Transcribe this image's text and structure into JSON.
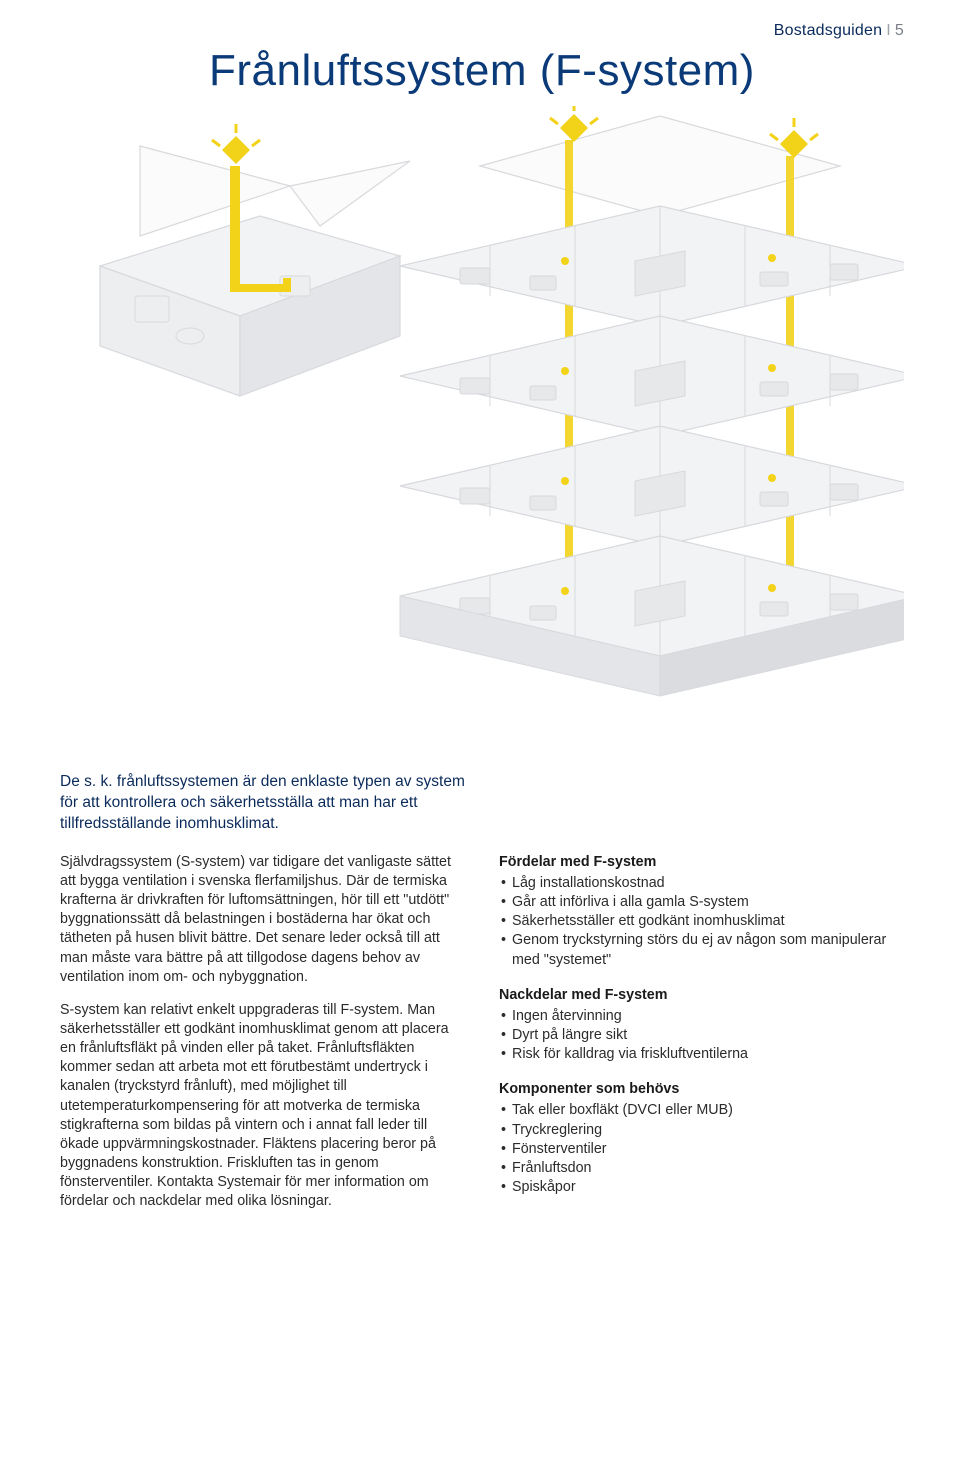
{
  "header": {
    "label": "Bostadsguiden",
    "page": "5"
  },
  "title": "Frånluftssystem (F-system)",
  "illustration": {
    "colors": {
      "duct": "#f3d21a",
      "wall_fill": "#f2f3f5",
      "wall_stroke": "#d7d9dc",
      "shadow": "#babdc2",
      "roof_fill": "#fbfbfc"
    }
  },
  "intro": "De s. k. frånluftssystemen är den enklaste typen av system för att kontrollera och säkerhetsställa att man har ett tillfredsställande inomhusklimat.",
  "left_paragraphs": [
    "Självdragssystem (S-system) var tidigare det vanligaste sättet att bygga ventilation i svenska flerfamiljshus. Där de termiska krafterna är drivkraften för luftomsättningen, hör till ett \"utdött\" byggnationssätt då belastningen i bostäderna har ökat och tätheten på husen blivit bättre. Det senare leder också till att man måste vara bättre på att tillgodose dagens behov av ventilation inom om- och nybyggnation.",
    "S-system kan relativt enkelt uppgraderas till F-system. Man säkerhetsställer ett godkänt inomhusklimat genom att placera en frånluftsfläkt på vinden eller på taket. Frånluftsfläkten kommer sedan att arbeta mot ett förutbestämt undertryck i kanalen (tryckstyrd frånluft), med möjlighet till utetemperaturkompensering för att motverka de termiska stigkrafterna som bildas på vintern och i annat fall leder till ökade uppvärmningskostnader. Fläktens placering beror på byggnadens konstruktion. Friskluften tas in genom fönsterventiler. Kontakta Systemair för mer information om fördelar och nackdelar med olika lösningar."
  ],
  "sections": [
    {
      "heading": "Fördelar med F-system",
      "items": [
        "Låg installationskostnad",
        "Går att införliva i alla gamla S-system",
        "Säkerhetsställer ett godkänt inomhusklimat",
        "Genom tryckstyrning störs du ej av någon som manipulerar med \"systemet\""
      ]
    },
    {
      "heading": "Nackdelar med F-system",
      "items": [
        "Ingen återvinning",
        "Dyrt på längre sikt",
        "Risk för kalldrag via friskluftventilerna"
      ]
    },
    {
      "heading": "Komponenter som behövs",
      "items": [
        "Tak eller boxfläkt (DVCI eller MUB)",
        "Tryckreglering",
        "Fönsterventiler",
        "Frånluftsdon",
        "Spiskåpor"
      ]
    }
  ]
}
